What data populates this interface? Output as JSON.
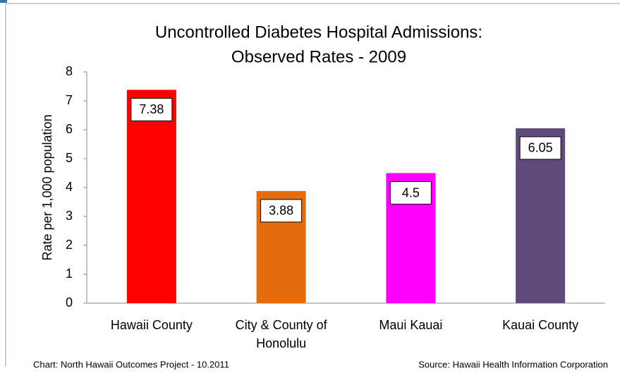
{
  "chart_data": {
    "type": "bar",
    "title": [
      "Uncontrolled Diabetes Hospital Admissions:",
      "Observed Rates - 2009"
    ],
    "y_label": "Rate per 1,000 population",
    "categories": [
      "Hawaii County",
      "City & County of Honolulu",
      "Maui Kauai",
      "Kauai County"
    ],
    "values": [
      7.38,
      3.88,
      4.5,
      6.05
    ],
    "colors": [
      "#ff0000",
      "#e46c0a",
      "#ff00ff",
      "#604a7b"
    ],
    "ylim": [
      0,
      8
    ],
    "yticks": [
      0,
      1,
      2,
      3,
      4,
      5,
      6,
      7,
      8
    ],
    "footnote_left": "Chart:  North Hawaii Outcomes Project - 10.2011",
    "footnote_right": "Source:  Hawaii Health Information Corporation"
  }
}
